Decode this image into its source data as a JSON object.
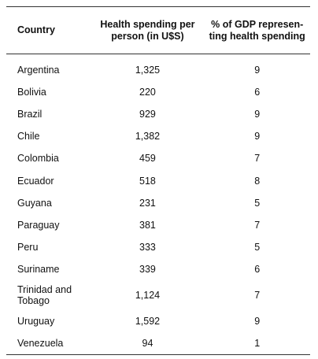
{
  "table": {
    "headers": {
      "country": "Country",
      "spending_line1": "Health spending per",
      "spending_line2": "person (in U$S)",
      "gdp_line1": "% of GDP represen-",
      "gdp_line2": "ting health spending"
    },
    "rows": [
      {
        "country": "Argentina",
        "spending": "1,325",
        "gdp": "9"
      },
      {
        "country": "Bolivia",
        "spending": "220",
        "gdp": "6"
      },
      {
        "country": "Brazil",
        "spending": "929",
        "gdp": "9"
      },
      {
        "country": "Chile",
        "spending": "1,382",
        "gdp": "9"
      },
      {
        "country": "Colombia",
        "spending": "459",
        "gdp": "7"
      },
      {
        "country": "Ecuador",
        "spending": "518",
        "gdp": "8"
      },
      {
        "country": "Guyana",
        "spending": "231",
        "gdp": "5"
      },
      {
        "country": "Paraguay",
        "spending": "381",
        "gdp": "7"
      },
      {
        "country": "Peru",
        "spending": "333",
        "gdp": "5"
      },
      {
        "country": "Suriname",
        "spending": "339",
        "gdp": "6"
      },
      {
        "country": "Trinidad and Tobago",
        "spending": "1,124",
        "gdp": "7"
      },
      {
        "country": "Uruguay",
        "spending": "1,592",
        "gdp": "9"
      },
      {
        "country": "Venezuela",
        "spending": "94",
        "gdp": "1"
      }
    ]
  }
}
